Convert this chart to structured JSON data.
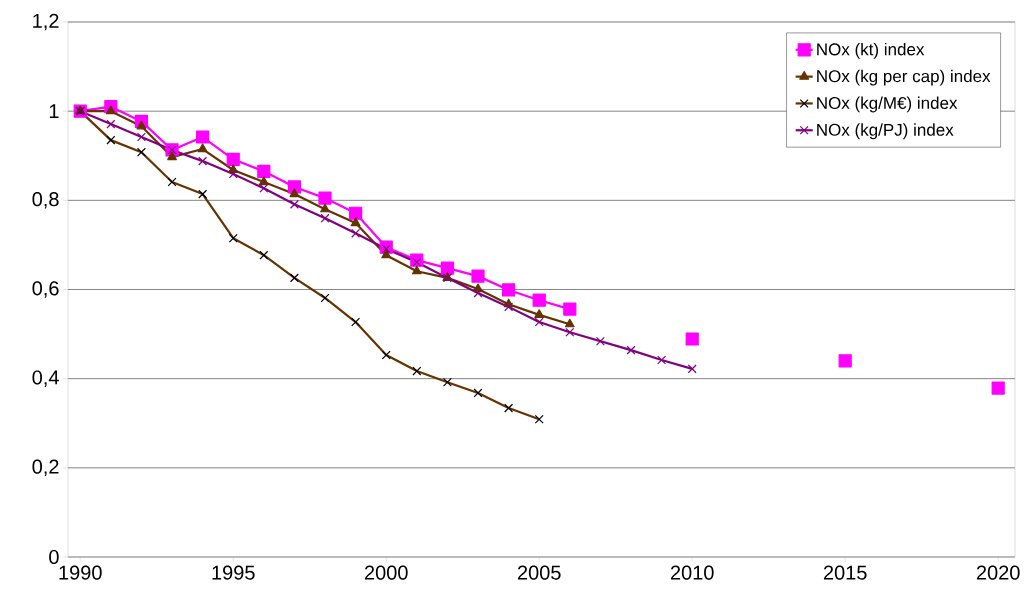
{
  "chart_data": {
    "type": "line",
    "x": [
      1990,
      1991,
      1992,
      1993,
      1994,
      1995,
      1996,
      1997,
      1998,
      1999,
      2000,
      2001,
      2002,
      2003,
      2004,
      2005,
      2006,
      2007,
      2008,
      2009,
      2010,
      2011,
      2012,
      2013,
      2014,
      2015,
      2016,
      2017,
      2018,
      2019,
      2020
    ],
    "series": [
      {
        "name": "NOx (kt) index",
        "color": "#ff00ff",
        "marker": "square",
        "values": [
          1.0,
          1.01,
          0.977,
          0.913,
          0.942,
          0.892,
          0.865,
          0.83,
          0.805,
          0.771,
          0.695,
          0.666,
          0.648,
          0.63,
          0.599,
          0.576,
          0.556,
          null,
          null,
          null,
          0.489,
          null,
          null,
          null,
          null,
          0.44,
          null,
          null,
          null,
          null,
          0.379
        ]
      },
      {
        "name": "NOx (kg per cap) index",
        "color": "#663300",
        "marker": "triangle",
        "values": [
          1.0,
          1.0,
          0.966,
          0.897,
          0.915,
          0.868,
          0.841,
          0.814,
          0.78,
          0.749,
          0.677,
          0.641,
          0.626,
          0.601,
          0.567,
          0.543,
          0.522,
          null,
          null,
          null,
          null,
          null,
          null,
          null,
          null,
          null,
          null,
          null,
          null,
          null,
          null
        ]
      },
      {
        "name": "NOx (kg/M€) index",
        "color": "#663300",
        "marker": "cross",
        "values": [
          1.0,
          0.935,
          0.908,
          0.841,
          0.814,
          0.715,
          0.677,
          0.626,
          0.581,
          0.527,
          0.453,
          0.417,
          0.392,
          0.368,
          0.334,
          0.309,
          null,
          null,
          null,
          null,
          null,
          null,
          null,
          null,
          null,
          null,
          null,
          null,
          null,
          null,
          null
        ]
      },
      {
        "name": "NOx (kg/PJ) index",
        "color": "#800080",
        "marker": "cross",
        "values": [
          1.0,
          0.971,
          0.942,
          0.913,
          0.888,
          0.859,
          0.827,
          0.791,
          0.76,
          0.726,
          0.691,
          0.661,
          0.626,
          0.592,
          0.561,
          0.527,
          0.504,
          0.484,
          0.464,
          0.442,
          0.422,
          null,
          null,
          null,
          null,
          null,
          null,
          null,
          null,
          null,
          null
        ]
      }
    ],
    "xlim": [
      1989.6,
      2020.55
    ],
    "xticks": [
      1990,
      1995,
      2000,
      2005,
      2010,
      2015,
      2020
    ],
    "ylim": [
      0,
      1.2
    ],
    "yticks": [
      0,
      {
        "value": 0.2,
        "label": "0,2"
      },
      {
        "value": 0.4,
        "label": "0,4"
      },
      {
        "value": 0.6,
        "label": "0,6"
      },
      {
        "value": 0.8,
        "label": "0,8"
      },
      1,
      {
        "value": 1.2,
        "label": "1,2"
      }
    ],
    "grid": "y",
    "legend": "top right",
    "line_style": "solid"
  }
}
